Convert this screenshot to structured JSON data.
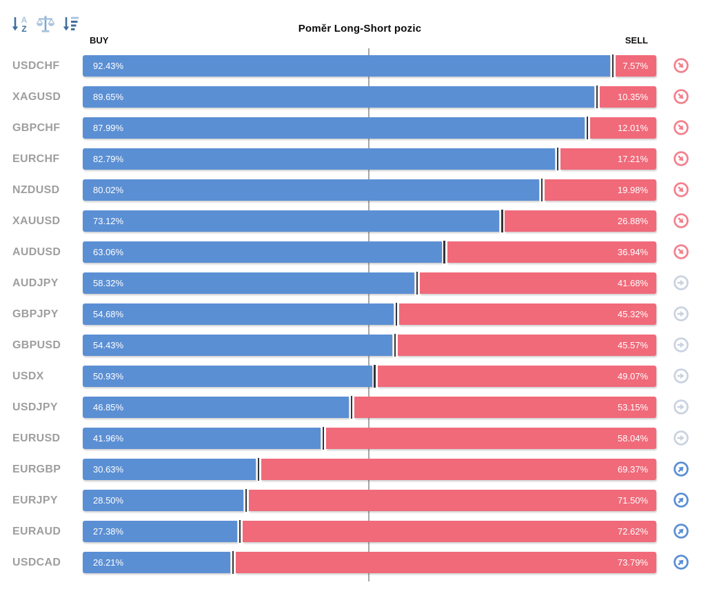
{
  "title": "Poměr Long-Short pozic",
  "axis": {
    "buy_label": "BUY",
    "sell_label": "SELL"
  },
  "toolbar": {
    "icons": [
      "sort-alphabetical-icon",
      "balance-scale-icon",
      "sort-amount-icon"
    ]
  },
  "colors": {
    "buy_bar": "#5b8fd4",
    "sell_bar": "#f06a7a",
    "bar_divider": "#33343a",
    "center_gridline": "#a6a6a6",
    "instrument_label": "#9e9e9e",
    "trend_down_right": "#f4818e",
    "trend_right": "#c9d3e0",
    "trend_up_right": "#5b8fd4",
    "toolbar_icon_dark": "#3f6f9f",
    "toolbar_icon_light": "#a9c4de"
  },
  "chart_data": {
    "type": "bar",
    "orientation": "horizontal",
    "stacked": true,
    "title": "Poměr Long-Short pozic",
    "xlabel": "",
    "ylabel": "",
    "xlim": [
      0,
      100
    ],
    "center_gridline_at": 50,
    "grid": "single-center-vertical-line",
    "legend_position": "top-as-axis-headers",
    "value_format": "percent, 2 decimals, shown inside bars",
    "categories": [
      "USDCHF",
      "XAGUSD",
      "GBPCHF",
      "EURCHF",
      "NZDUSD",
      "XAUUSD",
      "AUDUSD",
      "AUDJPY",
      "GBPJPY",
      "GBPUSD",
      "USDX",
      "USDJPY",
      "EURUSD",
      "EURGBP",
      "EURJPY",
      "EURAUD",
      "USDCAD"
    ],
    "series": [
      {
        "name": "BUY",
        "color": "#5b8fd4",
        "values": [
          92.43,
          89.65,
          87.99,
          82.79,
          80.02,
          73.12,
          63.06,
          58.32,
          54.68,
          54.43,
          50.93,
          46.85,
          41.96,
          30.63,
          28.5,
          27.38,
          26.21
        ]
      },
      {
        "name": "SELL",
        "color": "#f06a7a",
        "values": [
          7.57,
          10.35,
          12.01,
          17.21,
          19.98,
          26.88,
          36.94,
          41.68,
          45.32,
          45.57,
          49.07,
          53.15,
          58.04,
          69.37,
          71.5,
          72.62,
          73.79
        ]
      }
    ],
    "row_trend_icons": [
      "down-right",
      "down-right",
      "down-right",
      "down-right",
      "down-right",
      "down-right",
      "down-right",
      "right",
      "right",
      "right",
      "right",
      "right",
      "right",
      "up-right",
      "up-right",
      "up-right",
      "up-right"
    ]
  }
}
